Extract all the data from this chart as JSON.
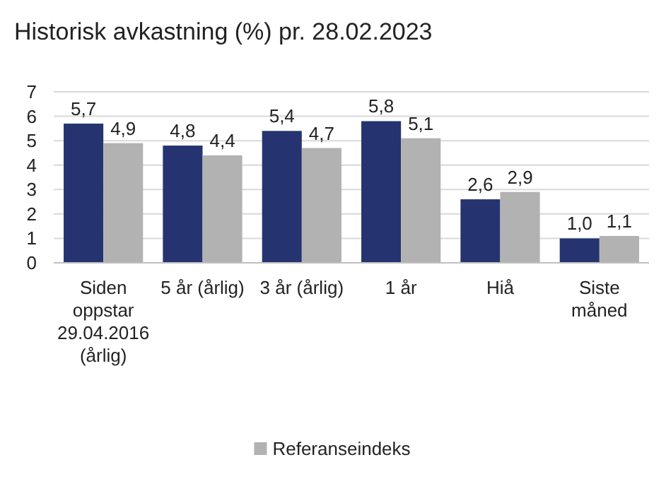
{
  "chart_data": {
    "type": "bar",
    "title": "Historisk avkastning (%) pr. 28.02.2023",
    "categories": [
      "Siden oppstar 29.04.2016 (årlig)",
      "5 år (årlig)",
      "3 år (årlig)",
      "1 år",
      "Hiå",
      "Siste måned"
    ],
    "series": [
      {
        "color": "#253470",
        "values": [
          5.7,
          4.8,
          5.4,
          5.8,
          2.6,
          1.0
        ],
        "value_labels": [
          "5,7",
          "4,8",
          "5,4",
          "5,8",
          "2,6",
          "1,0"
        ]
      },
      {
        "name": "Referanseindeks",
        "color": "#b2b2b2",
        "values": [
          4.9,
          4.4,
          4.7,
          5.1,
          2.9,
          1.1
        ],
        "value_labels": [
          "4,9",
          "4,4",
          "4,7",
          "5,1",
          "2,9",
          "1,1"
        ]
      }
    ],
    "ylim": [
      0,
      7
    ],
    "yticks": [
      0,
      1,
      2,
      3,
      4,
      5,
      6,
      7
    ],
    "grid": "y",
    "legend": "bottom"
  }
}
